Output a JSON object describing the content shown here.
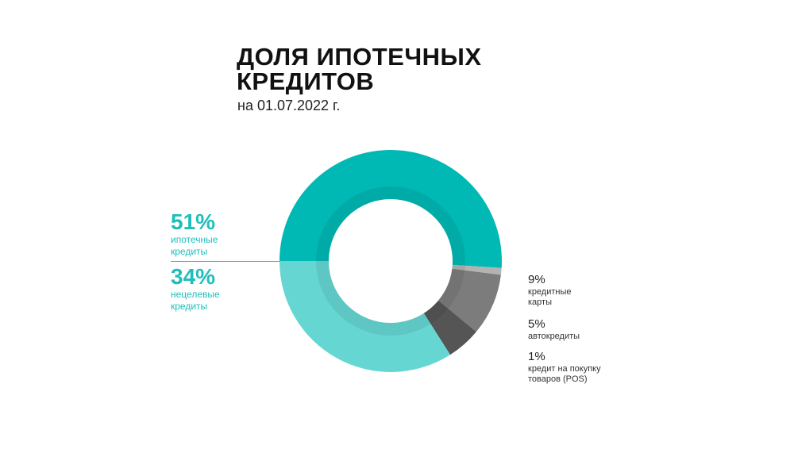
{
  "chart_data": {
    "type": "pie",
    "title": "ДОЛЯ ИПОТЕЧНЫХ КРЕДИТОВ",
    "subtitle": "на 01.07.2022 г.",
    "slices": [
      {
        "label_line1": "ипотечные",
        "label_line2": "кредиты",
        "value": 51,
        "pct_text": "51%",
        "color": "#00b9b4"
      },
      {
        "label_line1": "кредит на покупку",
        "label_line2": "товаров (POS)",
        "value": 1,
        "pct_text": "1%",
        "color": "#b3b3b3"
      },
      {
        "label_line1": "кредитные",
        "label_line2": "карты",
        "value": 9,
        "pct_text": "9%",
        "color": "#7c7c7c"
      },
      {
        "label_line1": "автокредиты",
        "label_line2": "",
        "value": 5,
        "pct_text": "5%",
        "color": "#555555"
      },
      {
        "label_line1": "нецелевые",
        "label_line2": "кредиты",
        "value": 34,
        "pct_text": "34%",
        "color": "#66d6d2"
      }
    ]
  }
}
